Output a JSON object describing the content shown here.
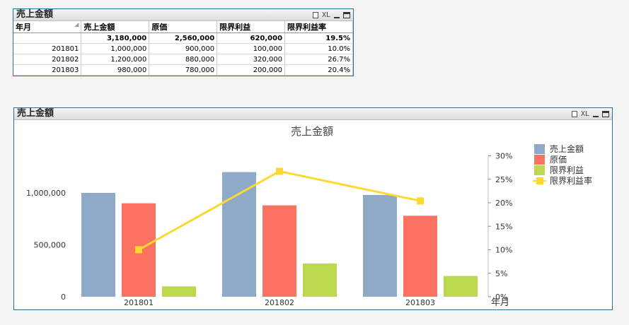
{
  "table_panel": {
    "title": "売上金額",
    "xl_label": "XL",
    "columns": [
      "年月",
      "売上金額",
      "原価",
      "限界利益",
      "限界利益率"
    ],
    "total_row": [
      "",
      "3,180,000",
      "2,560,000",
      "620,000",
      "19.5%"
    ],
    "rows": [
      [
        "201801",
        "1,000,000",
        "900,000",
        "100,000",
        "10.0%"
      ],
      [
        "201802",
        "1,200,000",
        "880,000",
        "320,000",
        "26.7%"
      ],
      [
        "201803",
        "980,000",
        "780,000",
        "200,000",
        "20.4%"
      ]
    ]
  },
  "chart_panel": {
    "title": "売上金額",
    "xl_label": "XL"
  },
  "chart_data": {
    "type": "bar",
    "title": "売上金額",
    "xlabel": "年月",
    "categories": [
      "201801",
      "201802",
      "201803"
    ],
    "series": [
      {
        "name": "売上金額",
        "type": "bar",
        "axis": "left",
        "color": "#8eaac8",
        "values": [
          1000000,
          1200000,
          980000
        ]
      },
      {
        "name": "原価",
        "type": "bar",
        "axis": "left",
        "color": "#fb7263",
        "values": [
          900000,
          880000,
          780000
        ]
      },
      {
        "name": "限界利益",
        "type": "bar",
        "axis": "left",
        "color": "#bcd84e",
        "values": [
          100000,
          320000,
          200000
        ]
      },
      {
        "name": "限界利益率",
        "type": "line",
        "axis": "right",
        "color": "#fbd931",
        "values": [
          10.0,
          26.7,
          20.4
        ]
      }
    ],
    "y_left": {
      "range": [
        0,
        1400000
      ],
      "ticks": [
        0,
        500000,
        1000000
      ],
      "tick_labels": [
        "0",
        "500,000",
        "1,000,000"
      ]
    },
    "y_right": {
      "range": [
        0,
        32
      ],
      "ticks": [
        0,
        5,
        10,
        15,
        20,
        25,
        30
      ],
      "tick_labels": [
        "0%",
        "5%",
        "10%",
        "15%",
        "20%",
        "25%",
        "30%"
      ]
    },
    "grid": false,
    "legend": "right"
  }
}
